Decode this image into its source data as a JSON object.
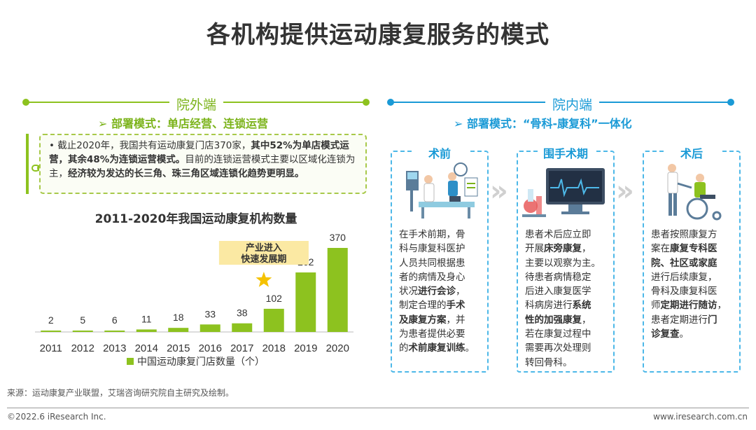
{
  "title": "各机构提供运动康复服务的模式",
  "left": {
    "section_label": "院外端",
    "mode": "➢ 部署模式：单店经营、连锁运营",
    "bullet": "•",
    "text_p1": "截止2020年，我国共有运动康复门店370家，",
    "text_b1": "其中52%为单店模式运营，其余48%为连锁运营模式。",
    "text_p2": "目前的连锁运营模式主要以区域化连锁为主，",
    "text_b2": "经济较为发达的长三角、珠三角区域连锁化趋势更明显。"
  },
  "chart_data": {
    "type": "bar",
    "title": "2011-2020年我国运动康复机构数量",
    "categories": [
      "2011",
      "2012",
      "2013",
      "2014",
      "2015",
      "2016",
      "2017",
      "2018",
      "2019",
      "2020"
    ],
    "series": [
      {
        "name": "中国运动康复门店数量（个）",
        "values": [
          2,
          5,
          6,
          11,
          18,
          33,
          38,
          102,
          262,
          370
        ]
      }
    ],
    "annotation": "产业进入\n快速发展期",
    "ylim": [
      0,
      370
    ],
    "grid": false,
    "legend_position": "bottom"
  },
  "colors": {
    "green": "#8dc21f",
    "light_green": "#a8c94a",
    "blue": "#1a9ad6",
    "star": "#f5c200",
    "annotation_bg": "#fbe9a3"
  },
  "right": {
    "section_label": "院内端",
    "mode": "➢ 部署模式：“骨科-康复科”一体化",
    "cards": [
      {
        "title": "术前",
        "icon": "doctor-patient-icon",
        "lines": [
          [
            {
              "t": "在手术前期，骨"
            }
          ],
          [
            {
              "t": "科与康复科医护"
            }
          ],
          [
            {
              "t": "人员共同根据患"
            }
          ],
          [
            {
              "t": "者的病情及身心"
            }
          ],
          [
            {
              "t": "状况"
            },
            {
              "t": "进行会诊",
              "b": true
            },
            {
              "t": "，"
            }
          ],
          [
            {
              "t": "制定合理的"
            },
            {
              "t": "手术",
              "b": true
            }
          ],
          [
            {
              "t": "及康复方案",
              "b": true
            },
            {
              "t": "，并"
            }
          ],
          [
            {
              "t": "为患者提供必要"
            }
          ],
          [
            {
              "t": "的"
            },
            {
              "t": "术前康复训练",
              "b": true
            },
            {
              "t": "。"
            }
          ]
        ]
      },
      {
        "title": "围手术期",
        "icon": "monitor-lab-icon",
        "lines": [
          [
            {
              "t": "患者术后应立即"
            }
          ],
          [
            {
              "t": "开展"
            },
            {
              "t": "床旁康复",
              "b": true
            },
            {
              "t": "，"
            }
          ],
          [
            {
              "t": "主要以观察为主。"
            }
          ],
          [
            {
              "t": "待患者病情稳定"
            }
          ],
          [
            {
              "t": "后进入康复医学"
            }
          ],
          [
            {
              "t": "科病房进行"
            },
            {
              "t": "系统",
              "b": true
            }
          ],
          [
            {
              "t": "性的加强康复",
              "b": true
            },
            {
              "t": "，"
            }
          ],
          [
            {
              "t": "若在康复过程中"
            }
          ],
          [
            {
              "t": "需要再次处理则"
            }
          ],
          [
            {
              "t": "转回骨科。"
            }
          ]
        ]
      },
      {
        "title": "术后",
        "icon": "wheelchair-icon",
        "lines": [
          [
            {
              "t": "患者按照康复方"
            }
          ],
          [
            {
              "t": "案在"
            },
            {
              "t": "康复专科医",
              "b": true
            }
          ],
          [
            {
              "t": "院、社区或家庭",
              "b": true
            }
          ],
          [
            {
              "t": "进行后续康复，"
            }
          ],
          [
            {
              "t": "骨科及康复科医"
            }
          ],
          [
            {
              "t": "师"
            },
            {
              "t": "定期进行随访",
              "b": true
            },
            {
              "t": "，"
            }
          ],
          [
            {
              "t": "患者定期进行"
            },
            {
              "t": "门",
              "b": true
            }
          ],
          [
            {
              "t": "诊复查",
              "b": true
            },
            {
              "t": "。"
            }
          ]
        ]
      }
    ]
  },
  "source": "来源：运动康复产业联盟，艾瑞咨询研究院自主研究及绘制。",
  "copyright": "©2022.6 iResearch Inc.",
  "website": "www.iresearch.com.cn"
}
